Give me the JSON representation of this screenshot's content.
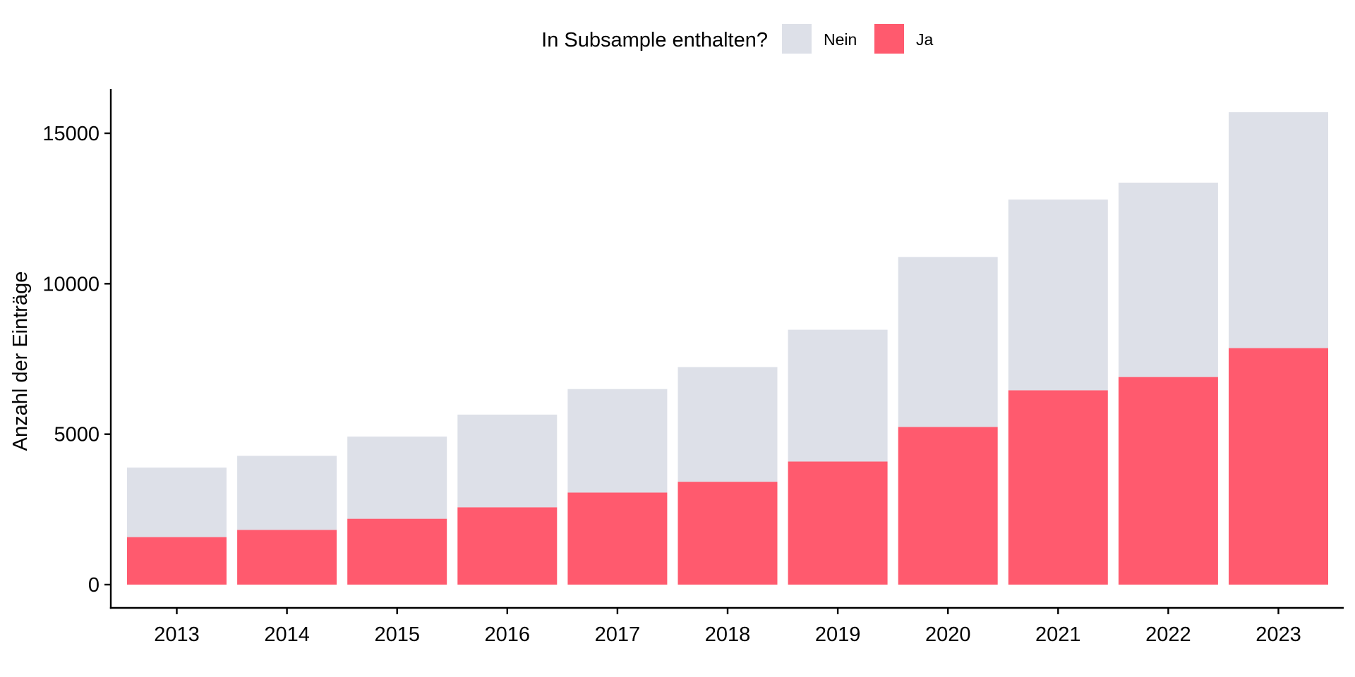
{
  "chart_data": {
    "type": "bar",
    "stacked": true,
    "categories": [
      "2013",
      "2014",
      "2015",
      "2016",
      "2017",
      "2018",
      "2019",
      "2020",
      "2021",
      "2022",
      "2023"
    ],
    "series": [
      {
        "name": "Ja",
        "color": "#ff5a6e",
        "values": [
          1580,
          1820,
          2190,
          2570,
          3060,
          3420,
          4090,
          5240,
          6460,
          6900,
          7860
        ]
      },
      {
        "name": "Nein",
        "color": "#dde0e8",
        "values": [
          2310,
          2460,
          2730,
          3080,
          3440,
          3810,
          4380,
          5650,
          6340,
          6460,
          7840
        ]
      }
    ],
    "title": "",
    "xlabel": "",
    "ylabel": "Anzahl der Einträge",
    "ylim": [
      -800,
      16500
    ],
    "yticks": [
      0,
      5000,
      10000,
      15000
    ],
    "yticklabels": [
      "0",
      "5000",
      "10000",
      "15000"
    ],
    "grid": false,
    "legend": {
      "title": "In Subsample enthalten?",
      "placement": "top-center",
      "order": [
        "Nein",
        "Ja"
      ]
    }
  }
}
